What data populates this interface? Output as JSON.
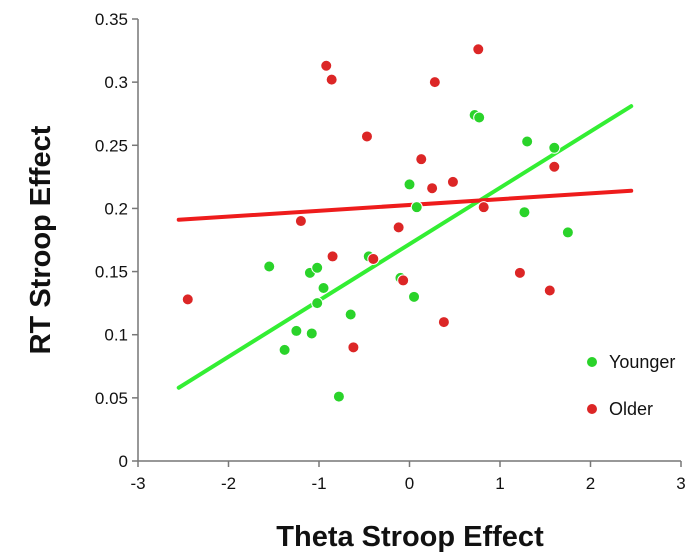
{
  "chart_data": {
    "type": "scatter",
    "xlabel": "Theta Stroop Effect",
    "ylabel": "RT Stroop Effect",
    "xlim": [
      -3,
      3
    ],
    "ylim": [
      0,
      0.35
    ],
    "xticks": [
      -3,
      -2,
      -1,
      0,
      1,
      2,
      3
    ],
    "yticks": [
      0,
      0.05,
      0.1,
      0.15,
      0.2,
      0.25,
      0.3,
      0.35
    ],
    "xtick_labels": [
      "-3",
      "-2",
      "-1",
      "0",
      "1",
      "2",
      "3"
    ],
    "ytick_labels": [
      "0",
      "0.05",
      "0.1",
      "0.15",
      "0.2",
      "0.25",
      "0.3",
      "0.35"
    ],
    "grid": false,
    "legend_position": "right",
    "series": [
      {
        "name": "Younger",
        "color": "#2ad32a",
        "points": [
          [
            -1.55,
            0.154
          ],
          [
            -1.1,
            0.149
          ],
          [
            -1.02,
            0.153
          ],
          [
            -0.95,
            0.137
          ],
          [
            -1.02,
            0.125
          ],
          [
            -1.25,
            0.103
          ],
          [
            -1.08,
            0.101
          ],
          [
            -1.38,
            0.088
          ],
          [
            -0.78,
            0.051
          ],
          [
            -0.65,
            0.116
          ],
          [
            -0.45,
            0.162
          ],
          [
            -0.1,
            0.145
          ],
          [
            0.05,
            0.13
          ],
          [
            0.0,
            0.219
          ],
          [
            0.08,
            0.201
          ],
          [
            0.72,
            0.274
          ],
          [
            0.77,
            0.272
          ],
          [
            1.3,
            0.253
          ],
          [
            1.27,
            0.197
          ],
          [
            1.6,
            0.248
          ],
          [
            1.75,
            0.181
          ]
        ],
        "trend": [
          [
            -2.55,
            0.058
          ],
          [
            2.45,
            0.281
          ]
        ]
      },
      {
        "name": "Older",
        "color": "#dc2626",
        "points": [
          [
            -2.45,
            0.128
          ],
          [
            -0.92,
            0.313
          ],
          [
            -0.86,
            0.302
          ],
          [
            -0.47,
            0.257
          ],
          [
            -1.2,
            0.19
          ],
          [
            -0.85,
            0.162
          ],
          [
            -0.4,
            0.16
          ],
          [
            -0.62,
            0.09
          ],
          [
            -0.12,
            0.185
          ],
          [
            -0.07,
            0.143
          ],
          [
            0.13,
            0.239
          ],
          [
            0.25,
            0.216
          ],
          [
            0.28,
            0.3
          ],
          [
            0.48,
            0.221
          ],
          [
            0.38,
            0.11
          ],
          [
            0.76,
            0.326
          ],
          [
            0.82,
            0.201
          ],
          [
            1.22,
            0.149
          ],
          [
            1.55,
            0.135
          ],
          [
            1.6,
            0.233
          ]
        ],
        "trend": [
          [
            -2.55,
            0.191
          ],
          [
            2.45,
            0.214
          ]
        ]
      }
    ]
  }
}
